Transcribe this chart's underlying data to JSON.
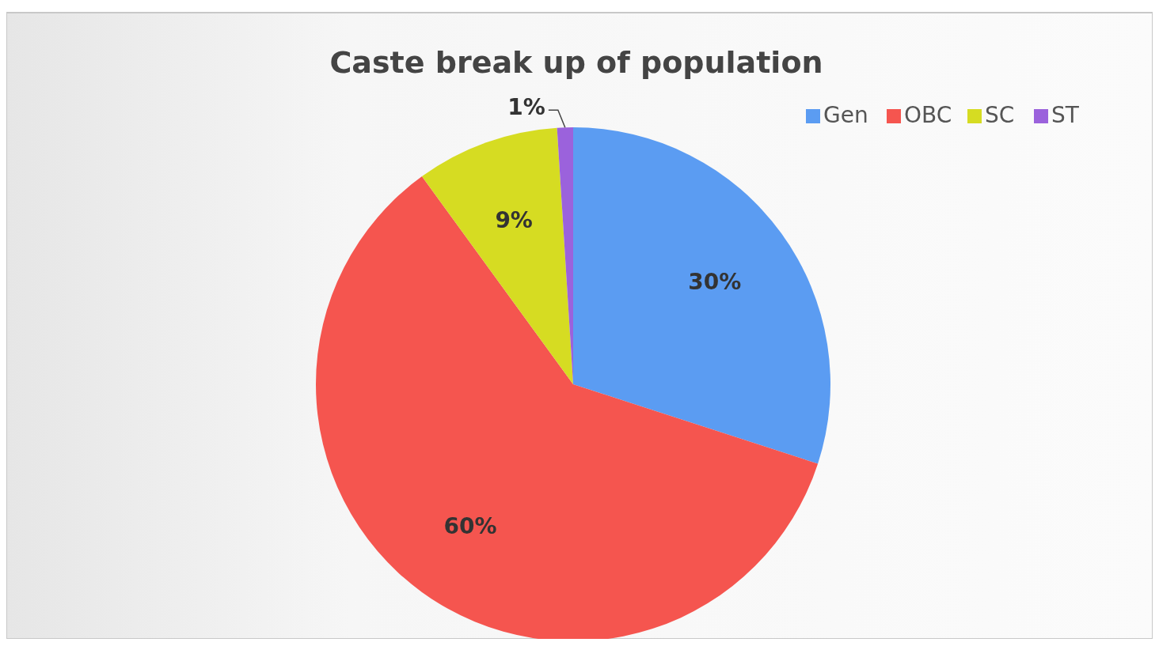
{
  "chart_data": {
    "type": "pie",
    "title": "Caste break up of population",
    "categories": [
      "Gen",
      "OBC",
      "SC",
      "ST"
    ],
    "values": [
      30,
      60,
      9,
      1
    ],
    "colors": [
      "#5b9cf2",
      "#f5554f",
      "#d6dc22",
      "#9b62dc"
    ],
    "value_labels": [
      "30%",
      "60%",
      "9%",
      "1%"
    ],
    "legend": "top right"
  }
}
